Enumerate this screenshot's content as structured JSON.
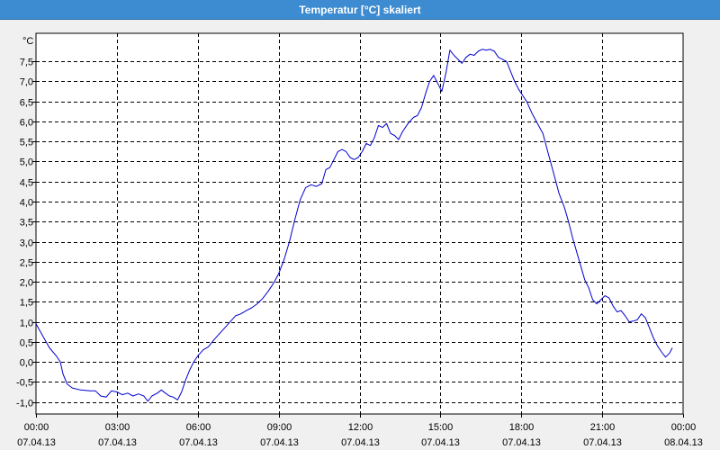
{
  "window": {
    "title": "Temperatur [°C] skaliert"
  },
  "chart_data": {
    "type": "line",
    "title": "Temperatur [°C] skaliert",
    "ylabel": "°C",
    "xlabel": "",
    "ylim": [
      -1.3,
      8.2
    ],
    "xlim": [
      "07.04.13 00:00",
      "08.04.13 00:00"
    ],
    "grid": true,
    "y_ticks": [
      "-1,0",
      "-0,5",
      "0,0",
      "0,5",
      "1,0",
      "1,5",
      "2,0",
      "2,5",
      "3,0",
      "3,5",
      "4,0",
      "4,5",
      "5,0",
      "5,5",
      "6,0",
      "6,5",
      "7,0",
      "7,5"
    ],
    "y_tick_values": [
      -1.0,
      -0.5,
      0.0,
      0.5,
      1.0,
      1.5,
      2.0,
      2.5,
      3.0,
      3.5,
      4.0,
      4.5,
      5.0,
      5.5,
      6.0,
      6.5,
      7.0,
      7.5
    ],
    "x_ticks": [
      {
        "time": "00:00",
        "date": "07.04.13"
      },
      {
        "time": "03:00",
        "date": "07.04.13"
      },
      {
        "time": "06:00",
        "date": "07.04.13"
      },
      {
        "time": "09:00",
        "date": "07.04.13"
      },
      {
        "time": "12:00",
        "date": "07.04.13"
      },
      {
        "time": "15:00",
        "date": "07.04.13"
      },
      {
        "time": "18:00",
        "date": "07.04.13"
      },
      {
        "time": "21:00",
        "date": "07.04.13"
      },
      {
        "time": "00:00",
        "date": "08.04.13"
      }
    ],
    "x_tick_hours": [
      0,
      3,
      6,
      9,
      12,
      15,
      18,
      21,
      24
    ],
    "series": [
      {
        "color": "#0000cc",
        "points": [
          [
            0.0,
            0.95
          ],
          [
            0.25,
            0.65
          ],
          [
            0.5,
            0.35
          ],
          [
            0.75,
            0.15
          ],
          [
            0.9,
            0.0
          ],
          [
            1.0,
            -0.3
          ],
          [
            1.15,
            -0.55
          ],
          [
            1.35,
            -0.65
          ],
          [
            1.65,
            -0.7
          ],
          [
            2.0,
            -0.72
          ],
          [
            2.2,
            -0.72
          ],
          [
            2.4,
            -0.85
          ],
          [
            2.6,
            -0.88
          ],
          [
            2.8,
            -0.72
          ],
          [
            3.0,
            -0.75
          ],
          [
            3.2,
            -0.82
          ],
          [
            3.4,
            -0.78
          ],
          [
            3.6,
            -0.85
          ],
          [
            3.8,
            -0.8
          ],
          [
            4.0,
            -0.85
          ],
          [
            4.15,
            -0.98
          ],
          [
            4.3,
            -0.85
          ],
          [
            4.5,
            -0.78
          ],
          [
            4.65,
            -0.7
          ],
          [
            4.8,
            -0.78
          ],
          [
            4.95,
            -0.85
          ],
          [
            5.1,
            -0.88
          ],
          [
            5.25,
            -0.95
          ],
          [
            5.4,
            -0.75
          ],
          [
            5.55,
            -0.45
          ],
          [
            5.7,
            -0.2
          ],
          [
            5.85,
            0.0
          ],
          [
            6.0,
            0.15
          ],
          [
            6.2,
            0.3
          ],
          [
            6.4,
            0.38
          ],
          [
            6.6,
            0.55
          ],
          [
            6.8,
            0.7
          ],
          [
            7.0,
            0.85
          ],
          [
            7.2,
            1.0
          ],
          [
            7.4,
            1.15
          ],
          [
            7.6,
            1.2
          ],
          [
            7.8,
            1.28
          ],
          [
            8.0,
            1.35
          ],
          [
            8.2,
            1.45
          ],
          [
            8.4,
            1.58
          ],
          [
            8.6,
            1.75
          ],
          [
            8.8,
            1.95
          ],
          [
            9.0,
            2.2
          ],
          [
            9.2,
            2.55
          ],
          [
            9.4,
            3.0
          ],
          [
            9.6,
            3.55
          ],
          [
            9.8,
            4.05
          ],
          [
            10.0,
            4.35
          ],
          [
            10.2,
            4.42
          ],
          [
            10.4,
            4.38
          ],
          [
            10.6,
            4.45
          ],
          [
            10.75,
            4.8
          ],
          [
            10.9,
            4.85
          ],
          [
            11.05,
            5.05
          ],
          [
            11.2,
            5.25
          ],
          [
            11.35,
            5.3
          ],
          [
            11.5,
            5.25
          ],
          [
            11.65,
            5.1
          ],
          [
            11.8,
            5.05
          ],
          [
            11.95,
            5.1
          ],
          [
            12.1,
            5.25
          ],
          [
            12.25,
            5.45
          ],
          [
            12.4,
            5.4
          ],
          [
            12.55,
            5.6
          ],
          [
            12.7,
            5.9
          ],
          [
            12.85,
            5.85
          ],
          [
            13.0,
            5.95
          ],
          [
            13.15,
            5.7
          ],
          [
            13.3,
            5.65
          ],
          [
            13.45,
            5.55
          ],
          [
            13.6,
            5.75
          ],
          [
            13.8,
            5.95
          ],
          [
            14.0,
            6.1
          ],
          [
            14.15,
            6.15
          ],
          [
            14.3,
            6.35
          ],
          [
            14.45,
            6.7
          ],
          [
            14.6,
            7.0
          ],
          [
            14.75,
            7.15
          ],
          [
            14.9,
            6.95
          ],
          [
            15.05,
            6.75
          ],
          [
            15.2,
            7.2
          ],
          [
            15.35,
            7.78
          ],
          [
            15.5,
            7.65
          ],
          [
            15.65,
            7.55
          ],
          [
            15.8,
            7.45
          ],
          [
            15.95,
            7.6
          ],
          [
            16.1,
            7.68
          ],
          [
            16.25,
            7.65
          ],
          [
            16.4,
            7.75
          ],
          [
            16.55,
            7.8
          ],
          [
            16.7,
            7.78
          ],
          [
            16.85,
            7.8
          ],
          [
            17.0,
            7.75
          ],
          [
            17.15,
            7.6
          ],
          [
            17.3,
            7.55
          ],
          [
            17.45,
            7.5
          ],
          [
            17.6,
            7.25
          ],
          [
            17.75,
            7.0
          ],
          [
            17.9,
            6.8
          ],
          [
            18.05,
            6.65
          ],
          [
            18.2,
            6.5
          ],
          [
            18.4,
            6.2
          ],
          [
            18.6,
            5.95
          ],
          [
            18.8,
            5.7
          ],
          [
            19.0,
            5.2
          ],
          [
            19.2,
            4.7
          ],
          [
            19.4,
            4.2
          ],
          [
            19.6,
            3.85
          ],
          [
            19.75,
            3.5
          ],
          [
            19.9,
            3.1
          ],
          [
            20.05,
            2.75
          ],
          [
            20.2,
            2.4
          ],
          [
            20.35,
            2.05
          ],
          [
            20.5,
            1.85
          ],
          [
            20.65,
            1.55
          ],
          [
            20.8,
            1.45
          ],
          [
            20.95,
            1.55
          ],
          [
            21.1,
            1.65
          ],
          [
            21.25,
            1.6
          ],
          [
            21.4,
            1.4
          ],
          [
            21.55,
            1.25
          ],
          [
            21.7,
            1.28
          ],
          [
            21.85,
            1.15
          ],
          [
            22.0,
            1.0
          ],
          [
            22.15,
            1.02
          ],
          [
            22.3,
            1.05
          ],
          [
            22.45,
            1.2
          ],
          [
            22.6,
            1.1
          ],
          [
            22.75,
            0.85
          ],
          [
            22.9,
            0.6
          ],
          [
            23.05,
            0.4
          ],
          [
            23.2,
            0.25
          ],
          [
            23.35,
            0.12
          ],
          [
            23.5,
            0.22
          ],
          [
            23.6,
            0.35
          ]
        ]
      }
    ]
  }
}
